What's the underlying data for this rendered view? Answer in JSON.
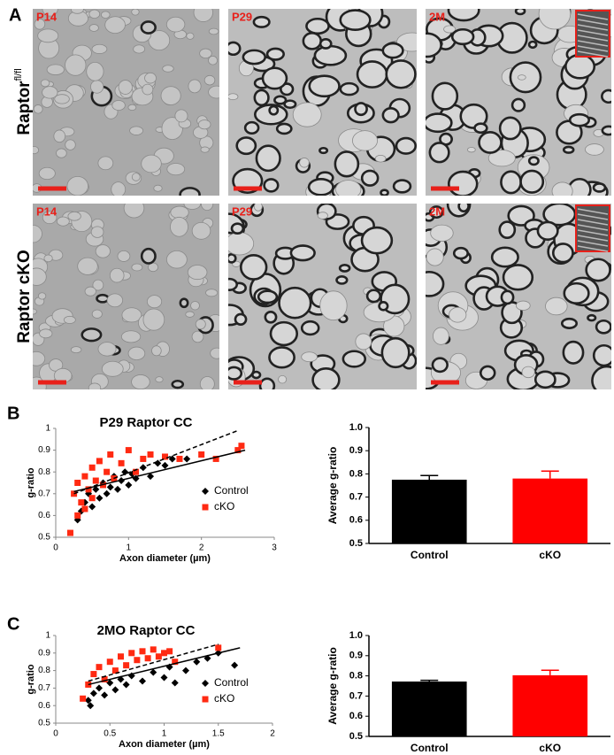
{
  "panels": {
    "letters": [
      "A",
      "B",
      "C"
    ],
    "row_labels": [
      {
        "text": "Raptor",
        "sup": "fl/fl"
      },
      {
        "text": "Raptor cKO"
      }
    ],
    "image_labels": [
      [
        "P14",
        "P29",
        "2M"
      ],
      [
        "P14",
        "P29",
        "2M"
      ]
    ]
  },
  "chart_data": [
    {
      "type": "scatter",
      "title": "P29 Raptor CC",
      "x_label": "Axon diameter (µm)",
      "y_label": "g-ratio",
      "xlim": [
        0,
        3
      ],
      "xticks": [
        0,
        1,
        2,
        3
      ],
      "ylim": [
        0.5,
        1
      ],
      "yticks": [
        0.5,
        0.6,
        0.7,
        0.8,
        0.9,
        1
      ],
      "series": [
        {
          "name": "Control",
          "color": "#000000",
          "marker": "diamond",
          "x": [
            0.3,
            0.35,
            0.4,
            0.45,
            0.5,
            0.55,
            0.6,
            0.65,
            0.7,
            0.75,
            0.8,
            0.85,
            0.9,
            0.95,
            1.0,
            1.05,
            1.1,
            1.2,
            1.3,
            1.4,
            1.5,
            1.6,
            1.8
          ],
          "values": [
            0.58,
            0.62,
            0.66,
            0.7,
            0.64,
            0.72,
            0.68,
            0.75,
            0.7,
            0.73,
            0.78,
            0.72,
            0.76,
            0.8,
            0.74,
            0.79,
            0.77,
            0.82,
            0.78,
            0.84,
            0.83,
            0.86,
            0.86
          ],
          "trend": {
            "x": [
              0.25,
              2.6
            ],
            "y": [
              0.71,
              0.9
            ],
            "dashed": false
          }
        },
        {
          "name": "cKO",
          "color": "#ff2a12",
          "marker": "square",
          "x": [
            0.2,
            0.25,
            0.3,
            0.3,
            0.35,
            0.4,
            0.4,
            0.45,
            0.5,
            0.5,
            0.55,
            0.6,
            0.65,
            0.7,
            0.75,
            0.8,
            0.9,
            1.0,
            1.1,
            1.2,
            1.3,
            1.5,
            1.7,
            2.0,
            2.2,
            2.5,
            2.55
          ],
          "values": [
            0.52,
            0.7,
            0.6,
            0.75,
            0.66,
            0.78,
            0.63,
            0.72,
            0.82,
            0.68,
            0.76,
            0.85,
            0.74,
            0.8,
            0.88,
            0.77,
            0.84,
            0.9,
            0.8,
            0.86,
            0.88,
            0.87,
            0.86,
            0.88,
            0.86,
            0.9,
            0.92
          ],
          "trend": {
            "x": [
              0.25,
              2.5
            ],
            "y": [
              0.7,
              0.99
            ],
            "dashed": true
          }
        }
      ]
    },
    {
      "type": "bar",
      "y_label": "Average g-ratio",
      "categories": [
        "Control",
        "cKO"
      ],
      "values": [
        0.775,
        0.78
      ],
      "errors": [
        0.018,
        0.032
      ],
      "colors": [
        "#000000",
        "#ff0000"
      ],
      "ylim": [
        0.5,
        1
      ],
      "yticks": [
        0.5,
        0.6,
        0.7,
        0.8,
        0.9,
        {
          "value": 1,
          "label": "1.0"
        }
      ]
    },
    {
      "type": "scatter",
      "title": "2MO Raptor CC",
      "x_label": "Axon diameter (µm)",
      "y_label": "g-ratio",
      "xlim": [
        0,
        2
      ],
      "xticks": [
        0,
        0.5,
        1,
        1.5,
        2
      ],
      "ylim": [
        0.5,
        1
      ],
      "yticks": [
        0.5,
        0.6,
        0.7,
        0.8,
        0.9,
        1
      ],
      "series": [
        {
          "name": "Control",
          "color": "#000000",
          "marker": "diamond",
          "x": [
            0.3,
            0.32,
            0.35,
            0.4,
            0.45,
            0.5,
            0.55,
            0.6,
            0.65,
            0.7,
            0.8,
            0.9,
            1.0,
            1.05,
            1.1,
            1.2,
            1.3,
            1.4,
            1.5,
            1.65
          ],
          "values": [
            0.63,
            0.6,
            0.67,
            0.7,
            0.66,
            0.73,
            0.69,
            0.75,
            0.72,
            0.77,
            0.74,
            0.79,
            0.76,
            0.82,
            0.73,
            0.8,
            0.85,
            0.87,
            0.9,
            0.83
          ],
          "trend": {
            "x": [
              0.3,
              1.7
            ],
            "y": [
              0.72,
              0.93
            ],
            "dashed": false
          }
        },
        {
          "name": "cKO",
          "color": "#ff2a12",
          "marker": "square",
          "x": [
            0.25,
            0.3,
            0.35,
            0.4,
            0.45,
            0.5,
            0.55,
            0.6,
            0.65,
            0.7,
            0.75,
            0.8,
            0.85,
            0.9,
            0.95,
            1.0,
            1.05,
            1.1,
            1.5
          ],
          "values": [
            0.64,
            0.72,
            0.78,
            0.82,
            0.75,
            0.85,
            0.8,
            0.88,
            0.83,
            0.9,
            0.86,
            0.91,
            0.87,
            0.92,
            0.88,
            0.9,
            0.91,
            0.85,
            0.93
          ],
          "trend": {
            "x": [
              0.3,
              1.5
            ],
            "y": [
              0.74,
              0.95
            ],
            "dashed": true
          }
        }
      ]
    },
    {
      "type": "bar",
      "y_label": "Average g-ratio",
      "categories": [
        "Control",
        "cKO"
      ],
      "values": [
        0.772,
        0.803
      ],
      "errors": [
        0.006,
        0.025
      ],
      "colors": [
        "#000000",
        "#ff0000"
      ],
      "ylim": [
        0.5,
        1
      ],
      "yticks": [
        0.5,
        0.6,
        0.7,
        0.8,
        0.9,
        {
          "value": 1,
          "label": "1.0"
        }
      ]
    }
  ]
}
